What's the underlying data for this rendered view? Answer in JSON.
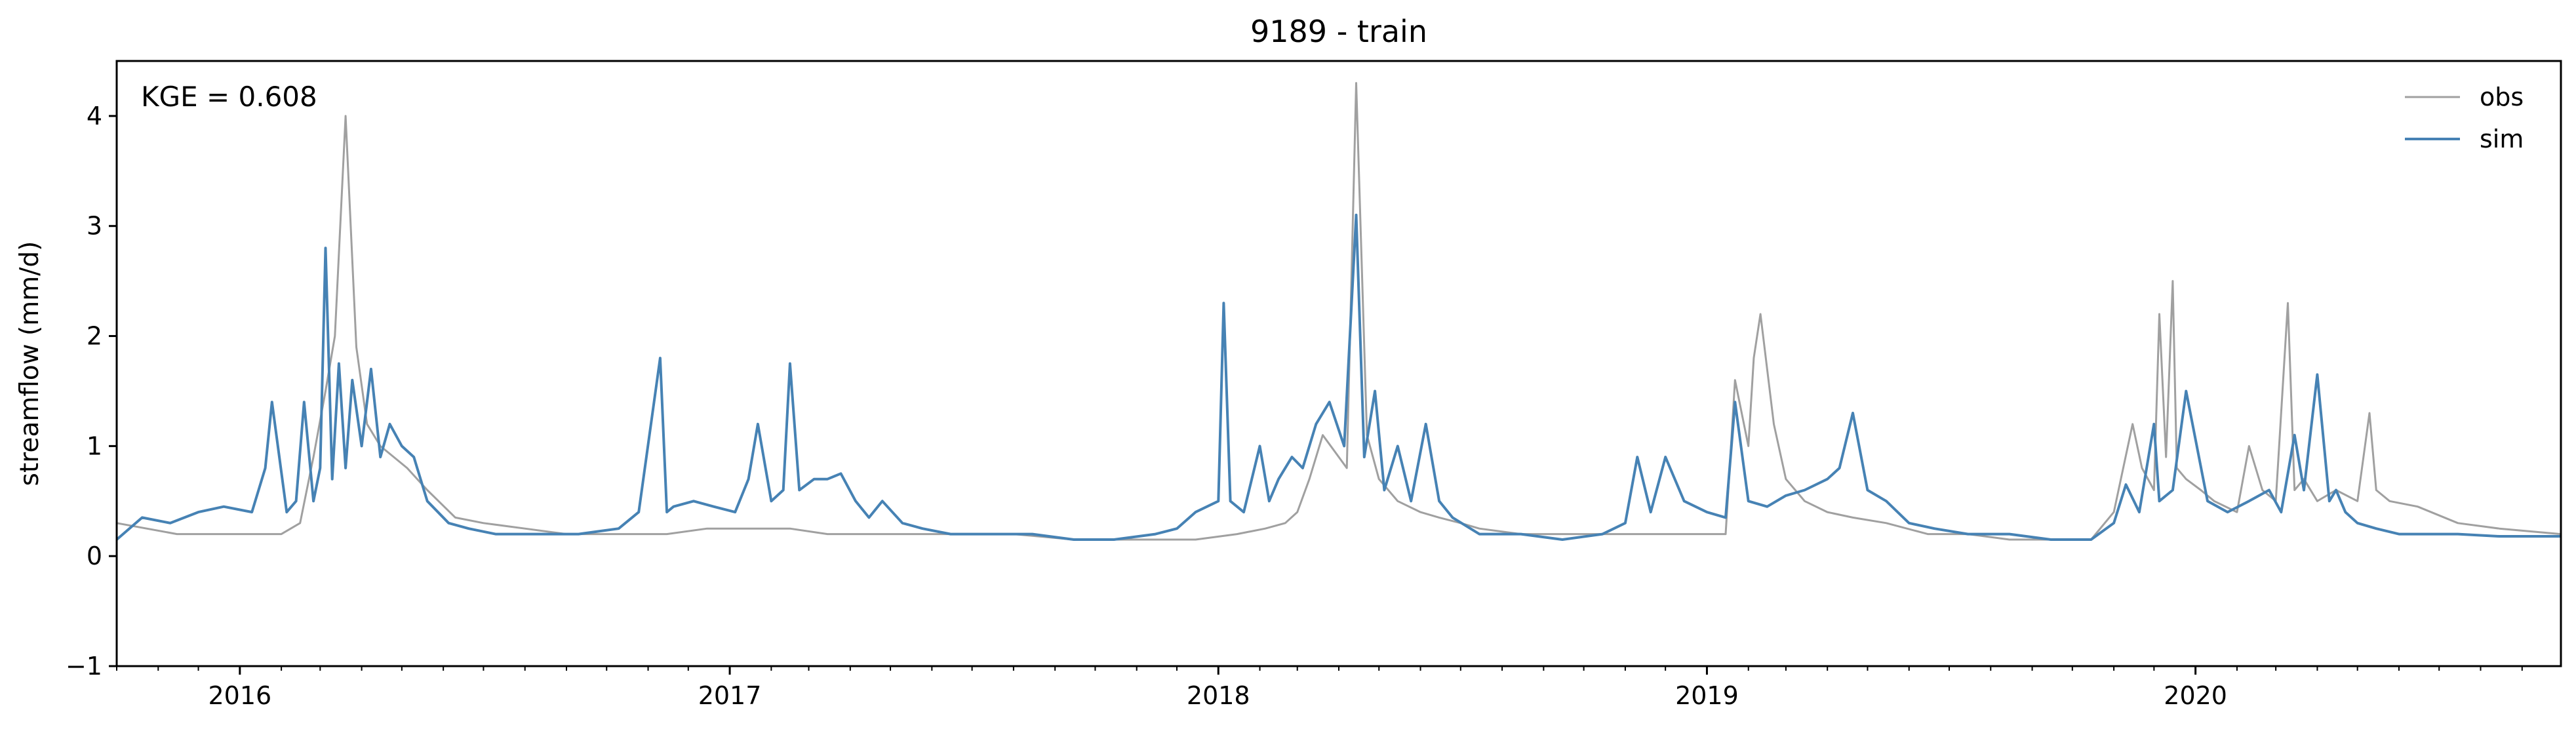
{
  "chart_data": {
    "type": "line",
    "title": "9189 - train",
    "xlabel": "",
    "ylabel": "streamflow (mm/d)",
    "annotation": "KGE = 0.608",
    "xlim": [
      "2015-10-01",
      "2020-09-30"
    ],
    "ylim": [
      -1,
      4.5
    ],
    "x_ticks": [
      "2016",
      "2017",
      "2018",
      "2019",
      "2020"
    ],
    "y_ticks": [
      "−1",
      "0",
      "1",
      "2",
      "3",
      "4"
    ],
    "legend": {
      "placement": "top-right",
      "entries": [
        "obs",
        "sim"
      ]
    },
    "grid": false,
    "colors": {
      "obs": "#a0a0a0",
      "sim": "#4682b4"
    },
    "series": [
      {
        "name": "obs",
        "x": [
          "2015-10-01",
          "2015-11-15",
          "2016-01-01",
          "2016-02-01",
          "2016-02-15",
          "2016-02-25",
          "2016-03-05",
          "2016-03-12",
          "2016-03-20",
          "2016-03-28",
          "2016-04-05",
          "2016-04-15",
          "2016-04-25",
          "2016-05-05",
          "2016-05-20",
          "2016-06-10",
          "2016-07-01",
          "2016-08-01",
          "2016-09-01",
          "2016-10-15",
          "2016-11-15",
          "2016-12-15",
          "2017-01-15",
          "2017-02-15",
          "2017-03-15",
          "2017-04-15",
          "2017-05-15",
          "2017-06-15",
          "2017-08-01",
          "2017-09-15",
          "2017-11-01",
          "2017-12-15",
          "2018-01-15",
          "2018-02-05",
          "2018-02-20",
          "2018-03-01",
          "2018-03-10",
          "2018-03-20",
          "2018-04-01",
          "2018-04-07",
          "2018-04-14",
          "2018-04-22",
          "2018-05-01",
          "2018-05-15",
          "2018-06-01",
          "2018-06-15",
          "2018-07-01",
          "2018-07-15",
          "2018-08-15",
          "2018-09-15",
          "2018-10-15",
          "2018-11-15",
          "2018-12-15",
          "2019-01-15",
          "2019-01-22",
          "2019-02-01",
          "2019-02-05",
          "2019-02-10",
          "2019-02-20",
          "2019-03-01",
          "2019-03-15",
          "2019-04-01",
          "2019-04-20",
          "2019-05-15",
          "2019-06-15",
          "2019-07-15",
          "2019-08-15",
          "2019-09-15",
          "2019-10-15",
          "2019-11-01",
          "2019-11-15",
          "2019-11-22",
          "2019-12-01",
          "2019-12-05",
          "2019-12-10",
          "2019-12-15",
          "2019-12-18",
          "2019-12-25",
          "2020-01-05",
          "2020-01-15",
          "2020-02-01",
          "2020-02-10",
          "2020-02-20",
          "2020-03-01",
          "2020-03-10",
          "2020-03-15",
          "2020-03-22",
          "2020-04-01",
          "2020-04-15",
          "2020-05-01",
          "2020-05-10",
          "2020-05-15",
          "2020-05-25",
          "2020-06-15",
          "2020-07-15",
          "2020-08-15",
          "2020-09-30"
        ],
        "y": [
          0.3,
          0.2,
          0.2,
          0.2,
          0.3,
          0.9,
          1.5,
          2.0,
          4.0,
          1.9,
          1.2,
          1.0,
          0.9,
          0.8,
          0.6,
          0.35,
          0.3,
          0.25,
          0.2,
          0.2,
          0.2,
          0.25,
          0.25,
          0.25,
          0.2,
          0.2,
          0.2,
          0.2,
          0.2,
          0.15,
          0.15,
          0.15,
          0.2,
          0.25,
          0.3,
          0.4,
          0.7,
          1.1,
          0.9,
          0.8,
          4.3,
          1.1,
          0.7,
          0.5,
          0.4,
          0.35,
          0.3,
          0.25,
          0.2,
          0.2,
          0.2,
          0.2,
          0.2,
          0.2,
          1.6,
          1.0,
          1.8,
          2.2,
          1.2,
          0.7,
          0.5,
          0.4,
          0.35,
          0.3,
          0.2,
          0.2,
          0.15,
          0.15,
          0.15,
          0.4,
          1.2,
          0.8,
          0.6,
          2.2,
          0.9,
          2.5,
          0.8,
          0.7,
          0.6,
          0.5,
          0.4,
          1.0,
          0.6,
          0.5,
          2.3,
          0.6,
          0.7,
          0.5,
          0.6,
          0.5,
          1.3,
          0.6,
          0.5,
          0.45,
          0.3,
          0.25,
          0.2
        ]
      },
      {
        "name": "sim",
        "x": [
          "2015-10-01",
          "2015-10-20",
          "2015-11-10",
          "2015-12-01",
          "2015-12-20",
          "2016-01-10",
          "2016-01-20",
          "2016-01-25",
          "2016-02-05",
          "2016-02-12",
          "2016-02-18",
          "2016-02-25",
          "2016-03-01",
          "2016-03-05",
          "2016-03-10",
          "2016-03-15",
          "2016-03-20",
          "2016-03-25",
          "2016-04-01",
          "2016-04-08",
          "2016-04-15",
          "2016-04-22",
          "2016-05-01",
          "2016-05-10",
          "2016-05-20",
          "2016-06-05",
          "2016-06-20",
          "2016-07-10",
          "2016-08-10",
          "2016-09-10",
          "2016-10-10",
          "2016-10-25",
          "2016-11-10",
          "2016-11-15",
          "2016-11-20",
          "2016-12-05",
          "2016-12-20",
          "2017-01-05",
          "2017-01-15",
          "2017-01-22",
          "2017-02-01",
          "2017-02-10",
          "2017-02-15",
          "2017-02-22",
          "2017-03-05",
          "2017-03-15",
          "2017-03-25",
          "2017-04-05",
          "2017-04-15",
          "2017-04-25",
          "2017-05-10",
          "2017-05-25",
          "2017-06-15",
          "2017-07-15",
          "2017-08-15",
          "2017-09-15",
          "2017-10-15",
          "2017-11-15",
          "2017-12-01",
          "2017-12-15",
          "2018-01-01",
          "2018-01-05",
          "2018-01-10",
          "2018-01-20",
          "2018-02-01",
          "2018-02-08",
          "2018-02-15",
          "2018-02-25",
          "2018-03-05",
          "2018-03-15",
          "2018-03-25",
          "2018-04-05",
          "2018-04-14",
          "2018-04-20",
          "2018-04-28",
          "2018-05-05",
          "2018-05-15",
          "2018-05-25",
          "2018-06-05",
          "2018-06-15",
          "2018-06-25",
          "2018-07-15",
          "2018-08-15",
          "2018-09-15",
          "2018-10-15",
          "2018-11-01",
          "2018-11-10",
          "2018-11-20",
          "2018-12-01",
          "2018-12-15",
          "2019-01-01",
          "2019-01-15",
          "2019-01-22",
          "2019-02-01",
          "2019-02-15",
          "2019-03-01",
          "2019-03-15",
          "2019-04-01",
          "2019-04-10",
          "2019-04-20",
          "2019-05-01",
          "2019-05-15",
          "2019-06-01",
          "2019-06-20",
          "2019-07-15",
          "2019-08-15",
          "2019-09-15",
          "2019-10-15",
          "2019-11-01",
          "2019-11-10",
          "2019-11-20",
          "2019-12-01",
          "2019-12-05",
          "2019-12-15",
          "2019-12-25",
          "2020-01-10",
          "2020-01-25",
          "2020-02-10",
          "2020-02-25",
          "2020-03-05",
          "2020-03-15",
          "2020-03-22",
          "2020-04-01",
          "2020-04-10",
          "2020-04-15",
          "2020-04-22",
          "2020-05-01",
          "2020-05-15",
          "2020-06-01",
          "2020-06-20",
          "2020-07-15",
          "2020-08-15",
          "2020-09-30"
        ],
        "y": [
          0.15,
          0.35,
          0.3,
          0.4,
          0.45,
          0.4,
          0.8,
          1.4,
          0.4,
          0.5,
          1.4,
          0.5,
          0.8,
          2.8,
          0.7,
          1.75,
          0.8,
          1.6,
          1.0,
          1.7,
          0.9,
          1.2,
          1.0,
          0.9,
          0.5,
          0.3,
          0.25,
          0.2,
          0.2,
          0.2,
          0.25,
          0.4,
          1.8,
          0.4,
          0.45,
          0.5,
          0.45,
          0.4,
          0.7,
          1.2,
          0.5,
          0.6,
          1.75,
          0.6,
          0.7,
          0.7,
          0.75,
          0.5,
          0.35,
          0.5,
          0.3,
          0.25,
          0.2,
          0.2,
          0.2,
          0.15,
          0.15,
          0.2,
          0.25,
          0.4,
          0.5,
          2.3,
          0.5,
          0.4,
          1.0,
          0.5,
          0.7,
          0.9,
          0.8,
          1.2,
          1.4,
          1.0,
          3.1,
          0.9,
          1.5,
          0.6,
          1.0,
          0.5,
          1.2,
          0.5,
          0.35,
          0.2,
          0.2,
          0.15,
          0.2,
          0.3,
          0.9,
          0.4,
          0.9,
          0.5,
          0.4,
          0.35,
          1.4,
          0.5,
          0.45,
          0.55,
          0.6,
          0.7,
          0.8,
          1.3,
          0.6,
          0.5,
          0.3,
          0.25,
          0.2,
          0.2,
          0.15,
          0.15,
          0.3,
          0.65,
          0.4,
          1.2,
          0.5,
          0.6,
          1.5,
          0.5,
          0.4,
          0.5,
          0.6,
          0.4,
          1.1,
          0.6,
          1.65,
          0.5,
          0.6,
          0.4,
          0.3,
          0.25,
          0.2,
          0.2,
          0.2,
          0.18,
          0.18
        ]
      }
    ]
  }
}
